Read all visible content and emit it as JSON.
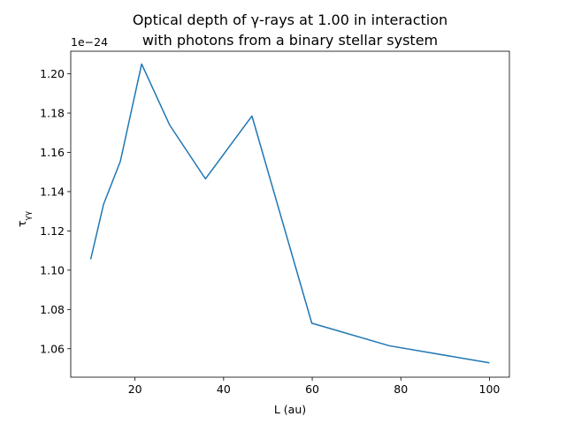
{
  "chart_data": {
    "type": "line",
    "title_line1": "Optical depth of γ-rays at 1.00 in interaction",
    "title_line2": "with photons from a binary stellar system",
    "xlabel": "L (au)",
    "ylabel": "τγγ",
    "ylabel_main": "τ",
    "ylabel_sub": "γγ",
    "offset_text": "1e−24",
    "y_scale": 1e-24,
    "xlim": [
      5.5,
      104.5
    ],
    "ylim": [
      1.0455,
      1.2115
    ],
    "x_ticks": [
      20,
      40,
      60,
      80,
      100
    ],
    "x_tick_labels": [
      "20",
      "40",
      "60",
      "80",
      "100"
    ],
    "y_ticks": [
      1.06,
      1.08,
      1.1,
      1.12,
      1.14,
      1.16,
      1.18,
      1.2
    ],
    "y_tick_labels": [
      "1.06",
      "1.08",
      "1.10",
      "1.12",
      "1.14",
      "1.16",
      "1.18",
      "1.20"
    ],
    "grid": false,
    "series": [
      {
        "color": "#1f77b4",
        "x": [
          10.0,
          12.9,
          16.7,
          21.5,
          27.8,
          35.9,
          46.4,
          59.9,
          77.4,
          100.0
        ],
        "y": [
          1.1055,
          1.1335,
          1.1555,
          1.205,
          1.174,
          1.1465,
          1.1785,
          1.073,
          1.0615,
          1.0528
        ]
      }
    ]
  }
}
